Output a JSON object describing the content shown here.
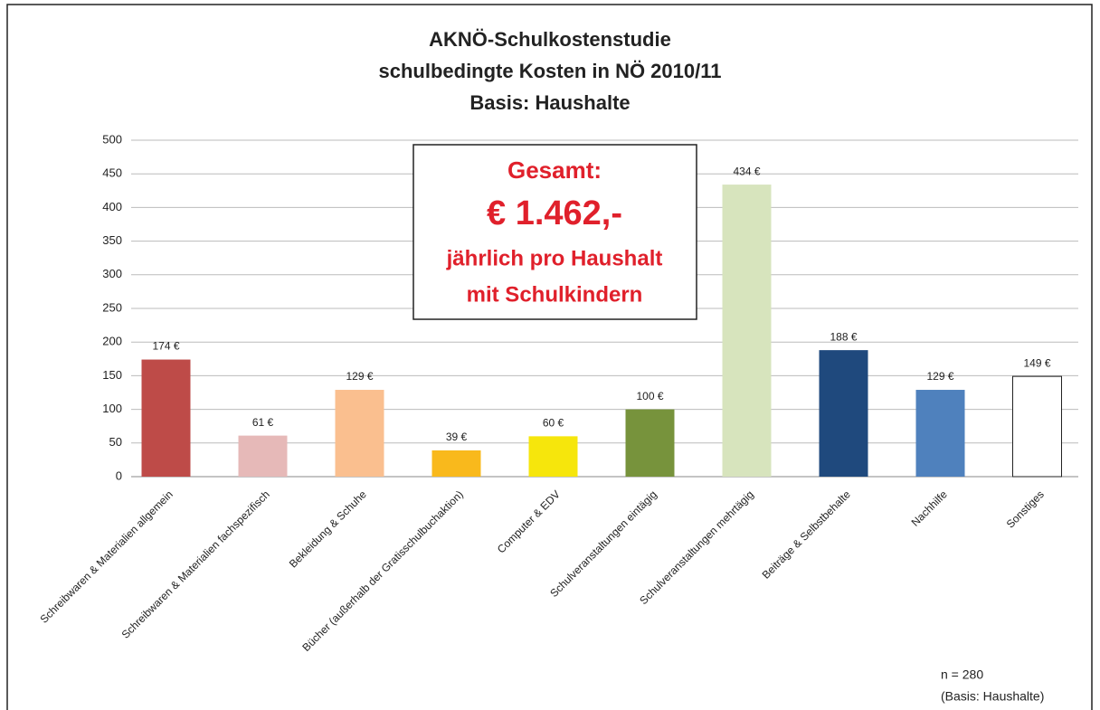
{
  "chart_data": {
    "type": "bar",
    "title": [
      "AKNÖ-Schulkostenstudie",
      "schulbedingte Kosten in NÖ 2010/11",
      "Basis: Haushalte"
    ],
    "categories": [
      "Schreibwaren & Materialien allgemein",
      "Schreibwaren & Materialien fachspezifisch",
      "Bekleidung & Schuhe",
      "Bücher (außerhalb der Gratisschulbuchaktion)",
      "Computer & EDV",
      "Schulveranstaltungen eintägig",
      "Schulveranstaltungen mehrtägig",
      "Beiträge & Selbstbehalte",
      "Nachhilfe",
      "Sonstiges"
    ],
    "values": [
      174,
      61,
      129,
      39,
      60,
      100,
      434,
      188,
      129,
      149
    ],
    "value_labels": [
      "174 €",
      "61 €",
      "129 €",
      "39 €",
      "60 €",
      "100 €",
      "434 €",
      "188 €",
      "129 €",
      "149 €"
    ],
    "colors": [
      "#be4b48",
      "#e6b9b8",
      "#fabf8f",
      "#f9b91c",
      "#f6e60c",
      "#77933c",
      "#d7e4bd",
      "#1f497d",
      "#4f81bd",
      "#ffffff"
    ],
    "ylim": [
      0,
      500
    ],
    "yticks": [
      0,
      50,
      100,
      150,
      200,
      250,
      300,
      350,
      400,
      450,
      500
    ],
    "grid": true,
    "annotation": [
      "Gesamt:",
      "€ 1.462,-",
      "jährlich pro Haushalt",
      "mit Schulkindern"
    ],
    "note": [
      "n = 280",
      "(Basis: Haushalte)"
    ]
  }
}
